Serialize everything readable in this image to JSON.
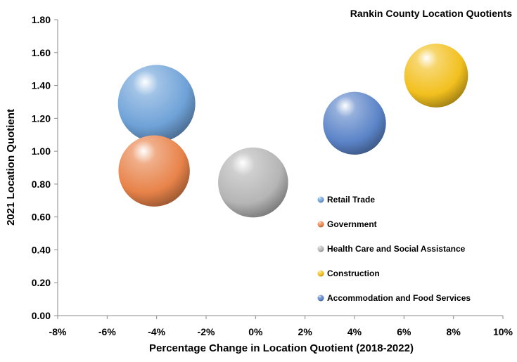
{
  "chart_data": {
    "type": "bubble",
    "title": "Rankin County Location Quotients",
    "xlabel": "Percentage Change in Location Quotient (2018-2022)",
    "ylabel": "2021 Location Quotient",
    "xlim": [
      -0.08,
      0.1
    ],
    "ylim": [
      0.0,
      1.8
    ],
    "xticks": [
      -0.08,
      -0.06,
      -0.04,
      -0.02,
      0.0,
      0.02,
      0.04,
      0.06,
      0.08,
      0.1
    ],
    "xtick_labels": [
      "-8%",
      "-6%",
      "-4%",
      "-2%",
      "0%",
      "2%",
      "4%",
      "6%",
      "8%",
      "10%"
    ],
    "yticks": [
      0.0,
      0.2,
      0.4,
      0.6,
      0.8,
      1.0,
      1.2,
      1.4,
      1.6,
      1.8
    ],
    "ytick_labels": [
      "0.00",
      "0.20",
      "0.40",
      "0.60",
      "0.80",
      "1.00",
      "1.20",
      "1.40",
      "1.60",
      "1.80"
    ],
    "grid": false,
    "legend_position": "right",
    "series": [
      {
        "name": "Retail Trade",
        "x": -0.04,
        "y": 1.29,
        "size": 1.0,
        "color": "#6fa2d8"
      },
      {
        "name": "Government",
        "x": -0.041,
        "y": 0.88,
        "size": 0.85,
        "color": "#e8834a"
      },
      {
        "name": "Health Care and Social Assistance",
        "x": -0.001,
        "y": 0.81,
        "size": 0.82,
        "color": "#b5b5b5"
      },
      {
        "name": "Construction",
        "x": 0.073,
        "y": 1.46,
        "size": 0.68,
        "color": "#f2c01e"
      },
      {
        "name": "Accommodation and Food Services",
        "x": 0.04,
        "y": 1.17,
        "size": 0.66,
        "color": "#5b84c8"
      }
    ]
  }
}
